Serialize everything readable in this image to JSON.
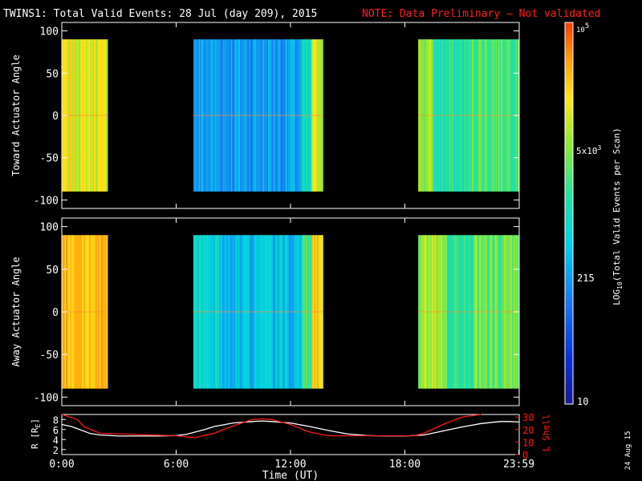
{
  "header": {
    "title": "TWINS1: Total Valid Events: 28 Jul (day 209), 2015",
    "note": "NOTE: Data Preliminary — Not validated",
    "note_color": "#ff2020"
  },
  "footer": {
    "date_stamp": "24 Aug 15"
  },
  "chart_data": [
    {
      "type": "heatmap",
      "panel": "toward",
      "ylabel": "Toward Actuator Angle",
      "ylim": [
        -110,
        110
      ],
      "yticks": [
        "100",
        "50",
        "0",
        "-50",
        "-100"
      ],
      "ytick_values": [
        100,
        50,
        0,
        -50,
        -100
      ],
      "xlim": [
        0,
        24
      ],
      "data_angle_range": [
        -90,
        90
      ],
      "coverage_hours": [
        [
          -0.2,
          2.4
        ],
        [
          6.9,
          13.7
        ],
        [
          18.7,
          24.2
        ]
      ],
      "segment_levels": [
        {
          "start": -0.2,
          "end": 2.4,
          "level": 0.72
        },
        {
          "start": 6.9,
          "end": 12.6,
          "level": 0.3
        },
        {
          "start": 12.6,
          "end": 13.1,
          "level": 0.4
        },
        {
          "start": 13.1,
          "end": 13.7,
          "level": 0.7
        },
        {
          "start": 18.7,
          "end": 19.5,
          "level": 0.62
        },
        {
          "start": 19.5,
          "end": 21.5,
          "level": 0.48
        },
        {
          "start": 21.5,
          "end": 24.2,
          "level": 0.56
        }
      ]
    },
    {
      "type": "heatmap",
      "panel": "away",
      "ylabel": "Away Actuator Angle",
      "ylim": [
        -110,
        110
      ],
      "yticks": [
        "100",
        "50",
        "0",
        "-50",
        "-100"
      ],
      "ytick_values": [
        100,
        50,
        0,
        -50,
        -100
      ],
      "xlim": [
        0,
        24
      ],
      "data_angle_range": [
        -90,
        90
      ],
      "coverage_hours": [
        [
          -0.2,
          2.4
        ],
        [
          6.9,
          13.7
        ],
        [
          18.7,
          24.2
        ]
      ],
      "segment_levels": [
        {
          "start": -0.2,
          "end": 2.4,
          "level": 0.82
        },
        {
          "start": 6.9,
          "end": 8.2,
          "level": 0.4
        },
        {
          "start": 8.2,
          "end": 12.6,
          "level": 0.36
        },
        {
          "start": 12.6,
          "end": 13.1,
          "level": 0.55
        },
        {
          "start": 13.1,
          "end": 13.7,
          "level": 0.78
        },
        {
          "start": 18.7,
          "end": 20.2,
          "level": 0.66
        },
        {
          "start": 20.2,
          "end": 21.6,
          "level": 0.5
        },
        {
          "start": 21.6,
          "end": 24.2,
          "level": 0.58
        }
      ]
    },
    {
      "type": "line",
      "panel": "orbit",
      "ylabel": "R [R",
      "ylabel_sub": "E",
      "ylabel_close": "]",
      "ylim": [
        1,
        9
      ],
      "yticks": [
        "8",
        "6",
        "4",
        "2"
      ],
      "ytick_values": [
        8,
        6,
        4,
        2
      ],
      "y2label": "L Shell",
      "y2lim": [
        0,
        32
      ],
      "y2ticks": [
        "30",
        "20",
        "10",
        "0"
      ],
      "y2tick_values": [
        30,
        20,
        10,
        0
      ],
      "xlabel": "Time (UT)",
      "xticks": [
        "0:00",
        "6:00",
        "12:00",
        "18:00",
        "23:59"
      ],
      "xtick_values": [
        0,
        6,
        12,
        18,
        23.98
      ],
      "xlim": [
        0,
        24
      ],
      "series": [
        {
          "color": "#ffffff",
          "axis": "left",
          "x": [
            0,
            0.5,
            1,
            1.5,
            2,
            3,
            4,
            5,
            6,
            6.5,
            7,
            7.5,
            8,
            9,
            10,
            10.5,
            11,
            12,
            13,
            14,
            15,
            16,
            17,
            18,
            19,
            20,
            21,
            22,
            23,
            23.5,
            24
          ],
          "y": [
            7.0,
            6.6,
            5.9,
            5.2,
            4.9,
            4.7,
            4.7,
            4.7,
            4.8,
            5.0,
            5.5,
            6.0,
            6.6,
            7.3,
            7.6,
            7.7,
            7.6,
            7.3,
            6.6,
            5.8,
            5.1,
            4.8,
            4.7,
            4.7,
            4.9,
            5.7,
            6.5,
            7.2,
            7.6,
            7.6,
            7.5
          ]
        },
        {
          "color": "#ff1a1a",
          "axis": "right",
          "x": [
            0,
            0.8,
            1.2,
            2,
            4,
            6,
            7,
            8,
            9,
            10,
            10.5,
            11,
            12,
            13,
            14,
            15,
            16,
            17,
            18.5,
            19,
            20,
            21,
            22
          ],
          "y": [
            32,
            28,
            22,
            17,
            16,
            15,
            13.5,
            17,
            23,
            28,
            28.5,
            28,
            24,
            18,
            15,
            15,
            15,
            15,
            15,
            17,
            24,
            30,
            34
          ]
        }
      ]
    }
  ],
  "colorbar": {
    "label": "LOG",
    "label_sub": "10",
    "label_rest": "(Total Valid Events per Scan)",
    "tick_top_base": "10",
    "tick_top_exp": "5",
    "tick_mid_base": "5x10",
    "tick_mid_exp": "3",
    "tick_215": "215",
    "tick_10": "10",
    "tick_values": [
      100000,
      5000,
      215,
      10
    ],
    "stops": [
      "#1a1a8c",
      "#0a2fe0",
      "#1a7ff2",
      "#00d2e6",
      "#24e29e",
      "#8fe836",
      "#ffe81a",
      "#ffa010",
      "#ff3a0a"
    ]
  }
}
